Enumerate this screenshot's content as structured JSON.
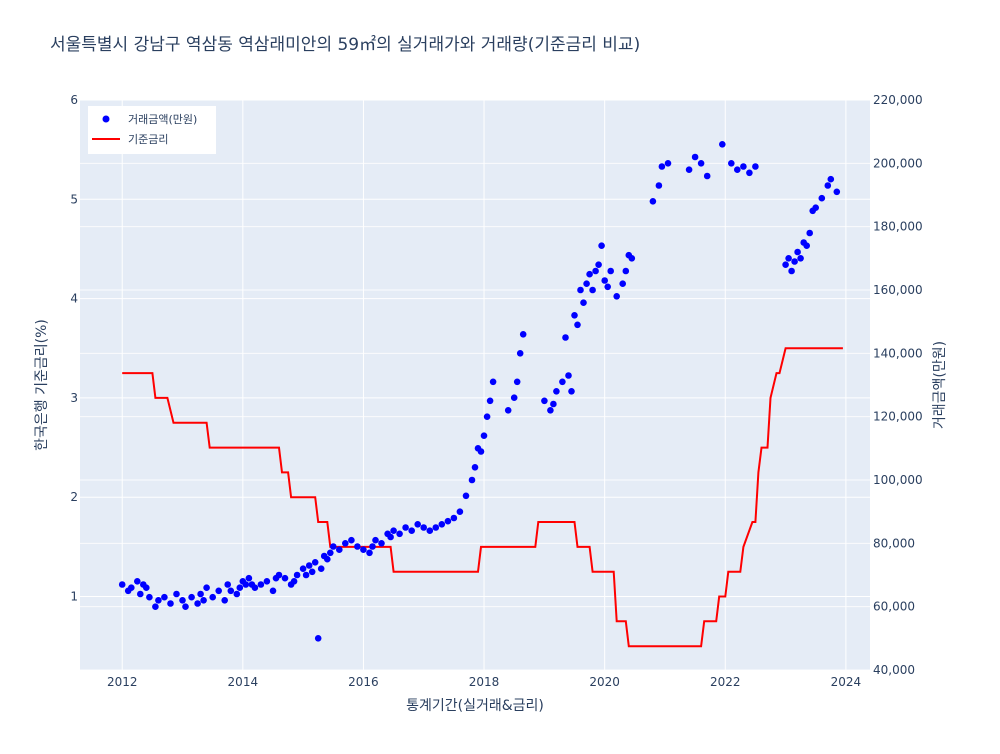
{
  "chart_data": {
    "type": "scatter+line (dual axis)",
    "title": "서울특별시 강남구 역삼동 역삼래미안의 59㎡의 실거래가와 거래량(기준금리 비교)",
    "xlabel": "통계기간(실거래&금리)",
    "ylabel_left": "한국은행 기준금리(%)",
    "ylabel_right": "거래금액(만원)",
    "x_range": [
      2011.3,
      2024.4
    ],
    "x_ticks": [
      "2012",
      "2014",
      "2016",
      "2018",
      "2020",
      "2022",
      "2024"
    ],
    "y_left_range": [
      0.26,
      6.0
    ],
    "y_left_ticks": [
      "1",
      "2",
      "3",
      "4",
      "5",
      "6"
    ],
    "y_right_range": [
      40000,
      220000
    ],
    "y_right_ticks": [
      "40,000",
      "60,000",
      "80,000",
      "100,000",
      "120,000",
      "140,000",
      "160,000",
      "180,000",
      "200,000",
      "220,000"
    ],
    "grid": true,
    "legend_position": "top-left",
    "colors": {
      "plot_bg": "#E5ECF6",
      "grid": "#ffffff",
      "price": "#0000FF",
      "rate": "#FF0000",
      "text": "#2a3f5f"
    },
    "series": [
      {
        "name": "거래금액(만원)",
        "kind": "scatter",
        "axis": "right",
        "x": [
          2012.0,
          2012.1,
          2012.15,
          2012.25,
          2012.3,
          2012.35,
          2012.4,
          2012.45,
          2012.55,
          2012.6,
          2012.7,
          2012.8,
          2012.9,
          2013.0,
          2013.05,
          2013.15,
          2013.25,
          2013.3,
          2013.35,
          2013.4,
          2013.5,
          2013.6,
          2013.7,
          2013.75,
          2013.8,
          2013.9,
          2013.95,
          2014.0,
          2014.05,
          2014.1,
          2014.15,
          2014.2,
          2014.3,
          2014.4,
          2014.5,
          2014.55,
          2014.6,
          2014.7,
          2014.8,
          2014.85,
          2014.9,
          2015.0,
          2015.05,
          2015.1,
          2015.15,
          2015.2,
          2015.25,
          2015.3,
          2015.35,
          2015.4,
          2015.45,
          2015.5,
          2015.6,
          2015.7,
          2015.8,
          2015.9,
          2016.0,
          2016.1,
          2016.15,
          2016.2,
          2016.3,
          2016.4,
          2016.45,
          2016.5,
          2016.6,
          2016.7,
          2016.8,
          2016.9,
          2017.0,
          2017.1,
          2017.2,
          2017.3,
          2017.4,
          2017.5,
          2017.6,
          2017.7,
          2017.8,
          2017.85,
          2017.9,
          2017.95,
          2018.0,
          2018.05,
          2018.1,
          2018.15,
          2018.4,
          2018.5,
          2018.55,
          2018.6,
          2018.65,
          2019.0,
          2019.1,
          2019.15,
          2019.2,
          2019.3,
          2019.35,
          2019.4,
          2019.45,
          2019.5,
          2019.55,
          2019.6,
          2019.65,
          2019.7,
          2019.75,
          2019.8,
          2019.85,
          2019.9,
          2019.95,
          2020.0,
          2020.05,
          2020.1,
          2020.2,
          2020.3,
          2020.35,
          2020.4,
          2020.45,
          2020.8,
          2020.9,
          2020.95,
          2021.05,
          2021.4,
          2021.5,
          2021.6,
          2021.7,
          2021.95,
          2022.1,
          2022.2,
          2022.3,
          2022.4,
          2022.5,
          2023.0,
          2023.05,
          2023.1,
          2023.15,
          2023.2,
          2023.25,
          2023.3,
          2023.35,
          2023.4,
          2023.45,
          2023.5,
          2023.6,
          2023.7,
          2023.75,
          2023.85
        ],
        "y": [
          67000,
          65000,
          66000,
          68000,
          64000,
          67000,
          66000,
          63000,
          60000,
          62000,
          63000,
          61000,
          64000,
          62000,
          60000,
          63000,
          61000,
          64000,
          62000,
          66000,
          63000,
          65000,
          62000,
          67000,
          65000,
          64000,
          66000,
          68000,
          67000,
          69000,
          67000,
          66000,
          67000,
          68000,
          65000,
          69000,
          70000,
          69000,
          67000,
          68000,
          70000,
          72000,
          70000,
          73000,
          71000,
          74000,
          50000,
          72000,
          76000,
          75000,
          77000,
          79000,
          78000,
          80000,
          81000,
          79000,
          78000,
          77000,
          79000,
          81000,
          80000,
          83000,
          82000,
          84000,
          83000,
          85000,
          84000,
          86000,
          85000,
          84000,
          85000,
          86000,
          87000,
          88000,
          90000,
          95000,
          100000,
          104000,
          110000,
          109000,
          114000,
          120000,
          125000,
          131000,
          122000,
          126000,
          131000,
          140000,
          146000,
          125000,
          122000,
          124000,
          128000,
          131000,
          145000,
          133000,
          128000,
          152000,
          149000,
          160000,
          156000,
          162000,
          165000,
          160000,
          166000,
          168000,
          174000,
          163000,
          161000,
          166000,
          158000,
          162000,
          166000,
          171000,
          170000,
          188000,
          193000,
          199000,
          200000,
          198000,
          202000,
          200000,
          196000,
          206000,
          200000,
          198000,
          199000,
          197000,
          199000,
          168000,
          170000,
          166000,
          169000,
          172000,
          170000,
          175000,
          174000,
          178000,
          185000,
          186000,
          189000,
          193000,
          195000,
          191000
        ],
        "color": "#0000FF"
      },
      {
        "name": "기준금리",
        "kind": "step-line",
        "axis": "left",
        "x": [
          2012.0,
          2012.5,
          2012.55,
          2012.75,
          2012.85,
          2013.4,
          2013.45,
          2014.6,
          2014.65,
          2014.75,
          2014.8,
          2015.2,
          2015.25,
          2015.4,
          2015.45,
          2016.45,
          2016.5,
          2017.9,
          2017.95,
          2018.85,
          2018.9,
          2019.5,
          2019.55,
          2019.75,
          2019.8,
          2020.15,
          2020.2,
          2020.35,
          2020.4,
          2021.6,
          2021.65,
          2021.85,
          2021.9,
          2022.0,
          2022.05,
          2022.25,
          2022.3,
          2022.45,
          2022.5,
          2022.55,
          2022.6,
          2022.7,
          2022.75,
          2022.85,
          2022.9,
          2023.0,
          2023.1,
          2023.15,
          2023.95
        ],
        "y": [
          3.25,
          3.25,
          3.0,
          3.0,
          2.75,
          2.75,
          2.5,
          2.5,
          2.25,
          2.25,
          2.0,
          2.0,
          1.75,
          1.75,
          1.5,
          1.5,
          1.25,
          1.25,
          1.5,
          1.5,
          1.75,
          1.75,
          1.5,
          1.5,
          1.25,
          1.25,
          0.75,
          0.75,
          0.5,
          0.5,
          0.75,
          0.75,
          1.0,
          1.0,
          1.25,
          1.25,
          1.5,
          1.75,
          1.75,
          2.25,
          2.5,
          2.5,
          3.0,
          3.25,
          3.25,
          3.5,
          3.5,
          3.5,
          3.5
        ],
        "color": "#FF0000"
      }
    ]
  }
}
